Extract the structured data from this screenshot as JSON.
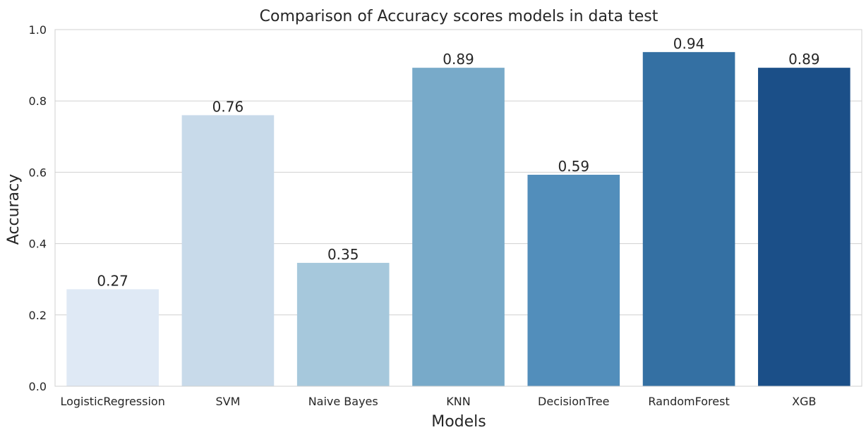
{
  "chart_data": {
    "type": "bar",
    "title": "Comparison of Accuracy scores models in data test",
    "xlabel": "Models",
    "ylabel": "Accuracy",
    "ylim": [
      0,
      1.0
    ],
    "yticks": [
      "0.0",
      "0.2",
      "0.4",
      "0.6",
      "0.8",
      "1.0"
    ],
    "grid": "horizontal",
    "categories": [
      "LogisticRegression",
      "SVM",
      "Naive Bayes",
      "KNN",
      "DecisionTree",
      "RandomForest",
      "XGB"
    ],
    "values": [
      0.272,
      0.76,
      0.346,
      0.893,
      0.593,
      0.937,
      0.893
    ],
    "data_labels": [
      "0.27",
      "0.76",
      "0.35",
      "0.89",
      "0.59",
      "0.94",
      "0.89"
    ],
    "colors": [
      "#dfe9f5",
      "#c8daea",
      "#a6c8dc",
      "#78aac9",
      "#528ebb",
      "#3470a3",
      "#1b4f88"
    ]
  }
}
